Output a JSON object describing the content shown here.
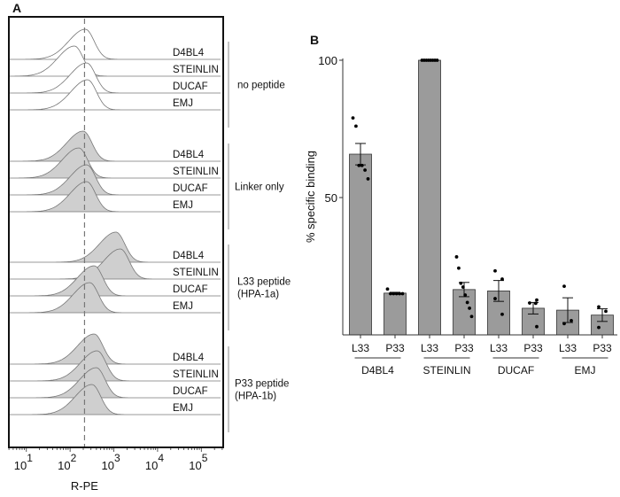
{
  "chart_data": [
    {
      "panel": "A",
      "type": "histogram-overlay",
      "xlabel": "R-PE",
      "x_scale": "log",
      "xlim_log10": [
        0.6,
        5.5
      ],
      "x_ticks": [
        {
          "base": "10",
          "exp": "1"
        },
        {
          "base": "10",
          "exp": "2"
        },
        {
          "base": "10",
          "exp": "3"
        },
        {
          "base": "10",
          "exp": "4"
        },
        {
          "base": "10",
          "exp": "5"
        }
      ],
      "reference_line_log10": 2.33,
      "groups": [
        {
          "label_lines": [
            "no peptide"
          ],
          "filled": false,
          "rows": [
            {
              "name": "D4BL4",
              "peak_log10": 2.35
            },
            {
              "name": "STEINLIN",
              "peak_log10": 2.1
            },
            {
              "name": "DUCAF",
              "peak_log10": 2.38
            },
            {
              "name": "EMJ",
              "peak_log10": 2.4
            }
          ]
        },
        {
          "label_lines": [
            "Linker only"
          ],
          "filled": true,
          "rows": [
            {
              "name": "D4BL4",
              "peak_log10": 2.3
            },
            {
              "name": "STEINLIN",
              "peak_log10": 2.2
            },
            {
              "name": "DUCAF",
              "peak_log10": 2.38
            },
            {
              "name": "EMJ",
              "peak_log10": 2.38
            }
          ]
        },
        {
          "label_lines": [
            "L33 peptide",
            "(HPA-1a)"
          ],
          "filled": true,
          "rows": [
            {
              "name": "D4BL4",
              "peak_log10": 3.05
            },
            {
              "name": "STEINLIN",
              "peak_log10": 3.15
            },
            {
              "name": "DUCAF",
              "peak_log10": 2.55
            },
            {
              "name": "EMJ",
              "peak_log10": 2.45
            }
          ]
        },
        {
          "label_lines": [
            "P33 peptide",
            "(HPA-1b)"
          ],
          "filled": true,
          "rows": [
            {
              "name": "D4BL4",
              "peak_log10": 2.55
            },
            {
              "name": "STEINLIN",
              "peak_log10": 2.62
            },
            {
              "name": "DUCAF",
              "peak_log10": 2.6
            },
            {
              "name": "EMJ",
              "peak_log10": 2.5
            }
          ]
        }
      ]
    },
    {
      "panel": "B",
      "type": "bar",
      "ylabel": "% specific binding",
      "ylim": [
        0,
        100
      ],
      "y_ticks": [
        "50",
        "100"
      ],
      "groups": [
        "D4BL4",
        "STEINLIN",
        "DUCAF",
        "EMJ"
      ],
      "bars": [
        {
          "group": "D4BL4",
          "label": "L33",
          "mean": 65.8,
          "sem": 3.9,
          "points": [
            79,
            76,
            61.7,
            61.7,
            60,
            56.8
          ]
        },
        {
          "group": "D4BL4",
          "label": "P33",
          "mean": 15.2,
          "sem": 0.3,
          "points": [
            16.7,
            15,
            15,
            15,
            15,
            15
          ]
        },
        {
          "group": "STEINLIN",
          "label": "L33",
          "mean": 100,
          "sem": 0,
          "points": [
            100,
            100,
            100,
            100,
            100,
            100,
            100,
            100
          ]
        },
        {
          "group": "STEINLIN",
          "label": "P33",
          "mean": 16.5,
          "sem": 2.6,
          "points": [
            28.4,
            24.3,
            18.8,
            17.4,
            14.5,
            11.8,
            9.7,
            6.7
          ]
        },
        {
          "group": "DUCAF",
          "label": "L33",
          "mean": 16,
          "sem": 3.8,
          "points": [
            23.3,
            20.3,
            13.2,
            7.5
          ]
        },
        {
          "group": "DUCAF",
          "label": "P33",
          "mean": 9.7,
          "sem": 2.1,
          "points": [
            11.6,
            12.7,
            11.5,
            3
          ]
        },
        {
          "group": "EMJ",
          "label": "L33",
          "mean": 9,
          "sem": 4.5,
          "points": [
            17.7,
            5.2,
            4.1
          ]
        },
        {
          "group": "EMJ",
          "label": "P33",
          "mean": 7.2,
          "sem": 2.3,
          "points": [
            10.2,
            8.6,
            2.7
          ]
        }
      ],
      "colors": {
        "bar": "#9b9b9b",
        "hist_fill": "#cfcfcf",
        "line": "#777777"
      }
    }
  ]
}
